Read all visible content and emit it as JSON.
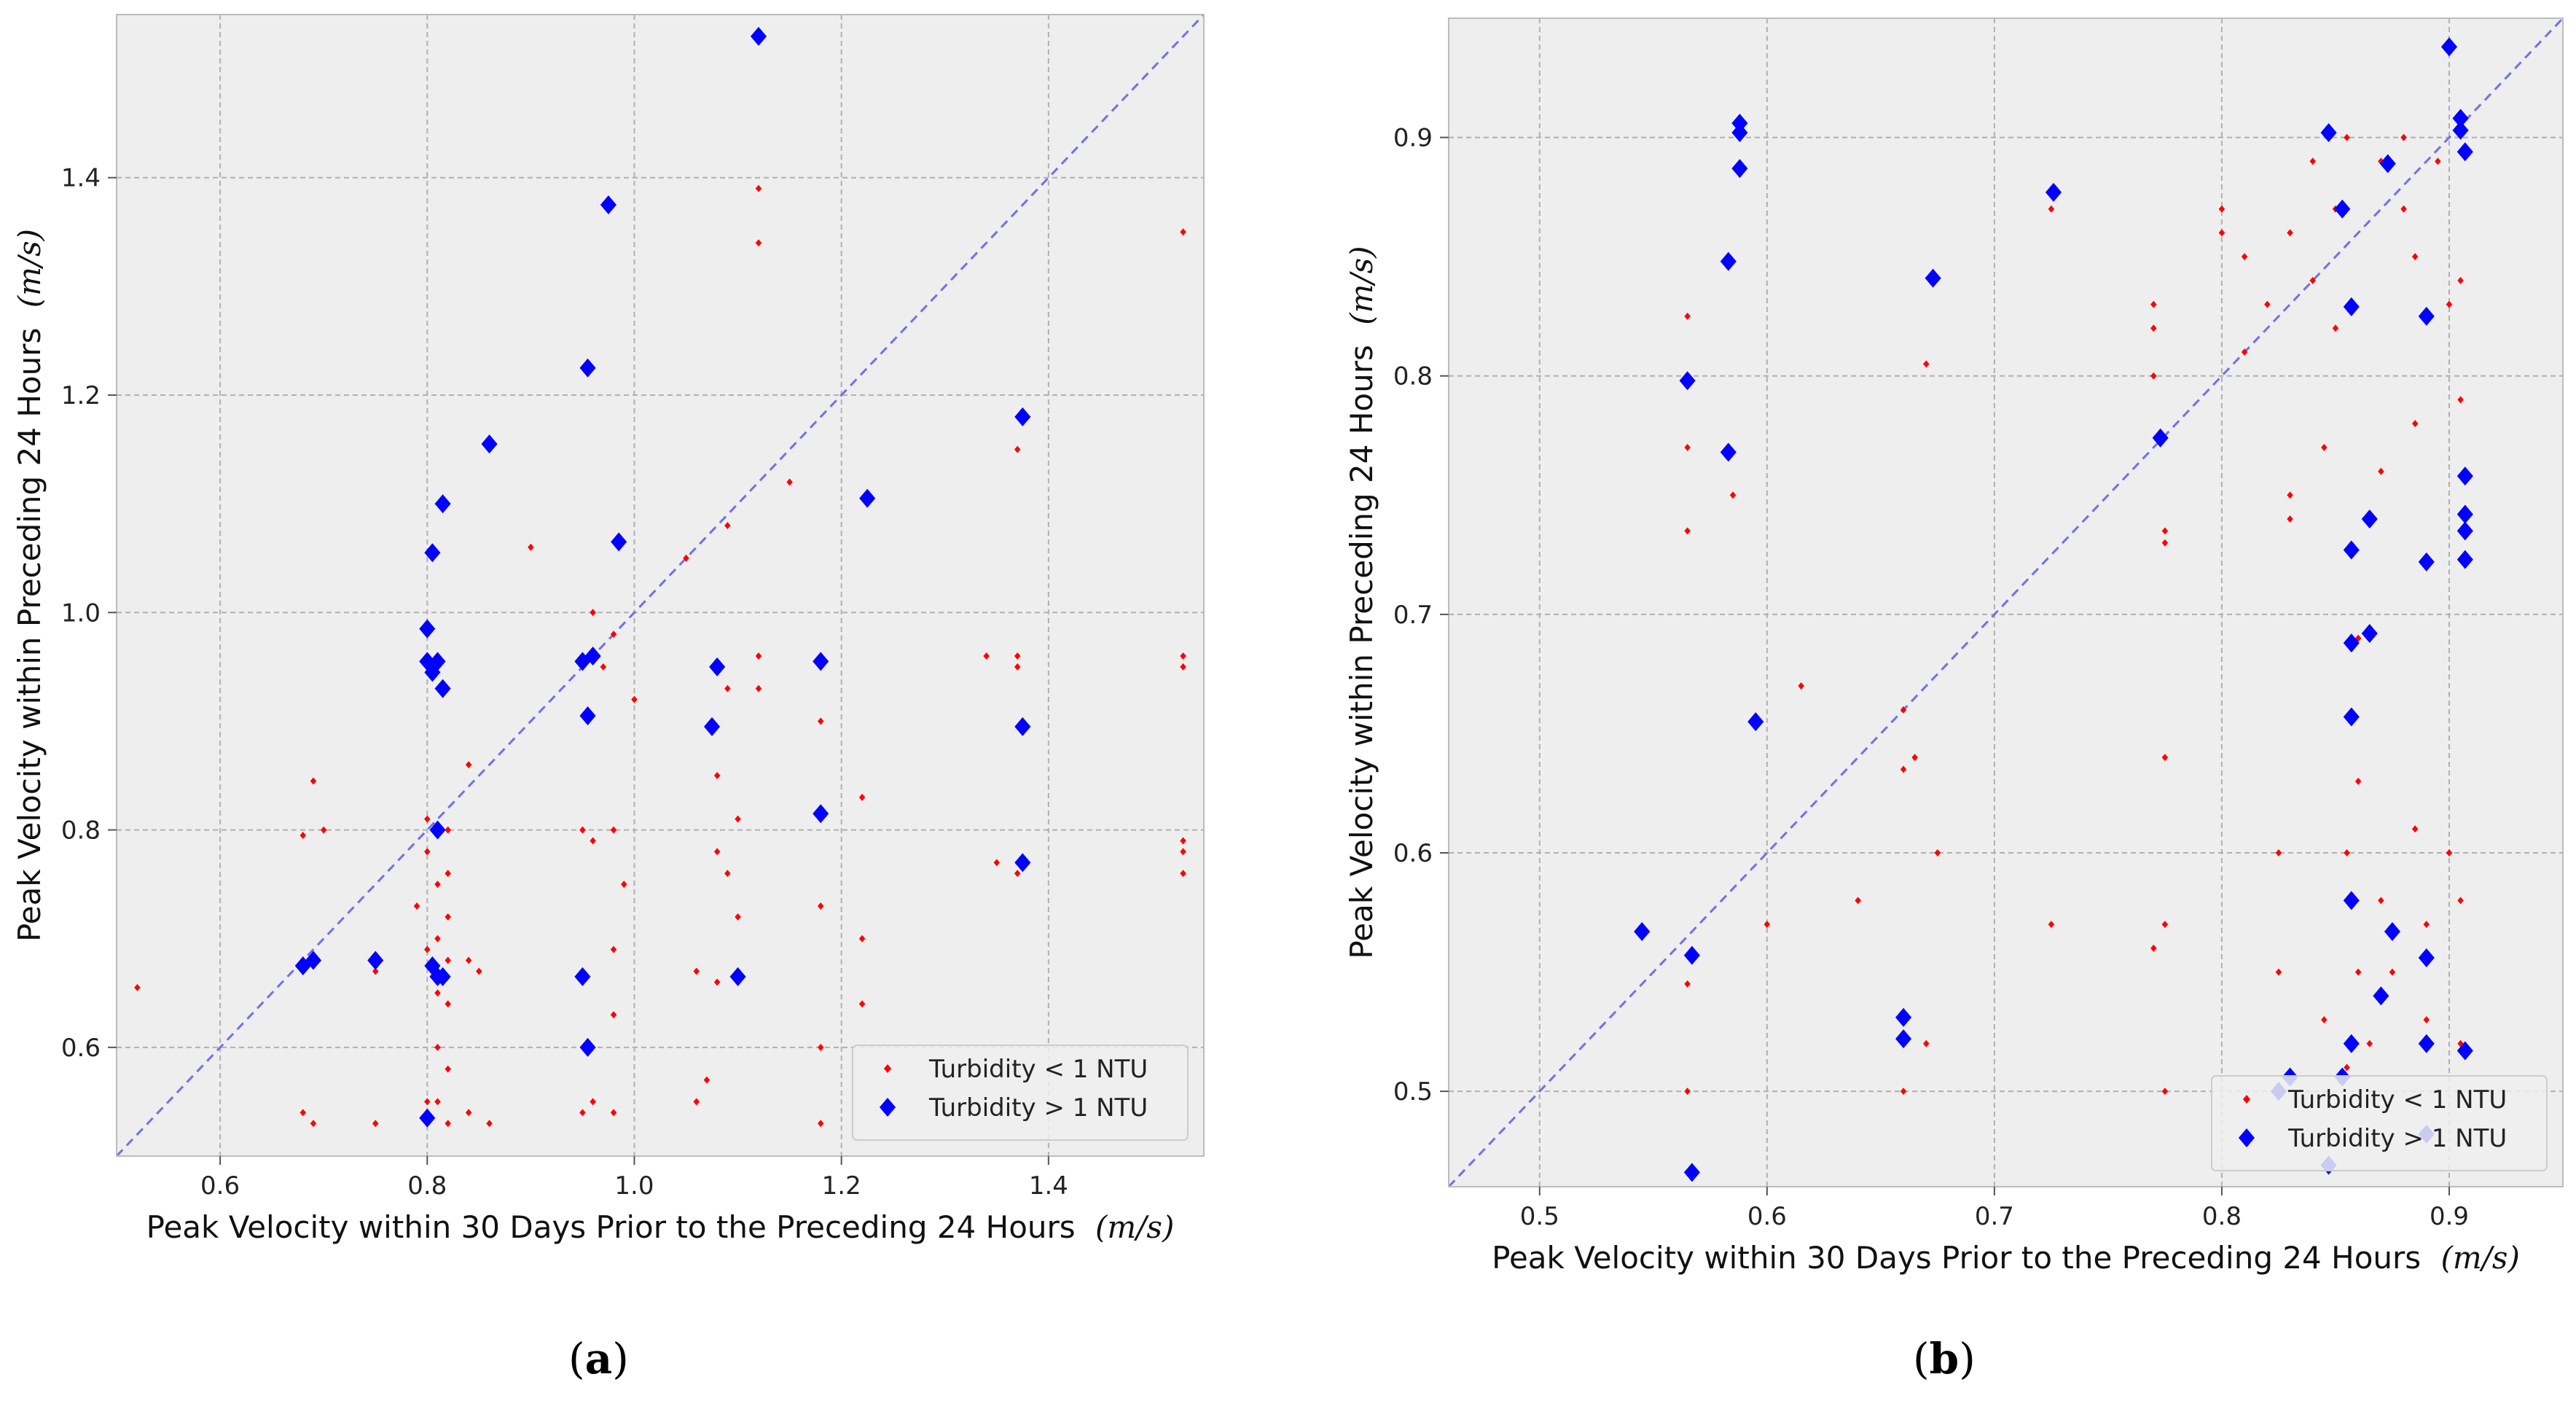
{
  "panels": [
    {
      "label_open": "(",
      "label_letter": "a",
      "label_close": ")",
      "xlabel": "Peak Velocity within 30 Days Prior to the Preceding 24 Hours",
      "ylabel": "Peak Velocity within Preceding 24 Hours",
      "unit": "(m/s)",
      "xticks": [
        "0.6",
        "0.8",
        "1.0",
        "1.2",
        "1.4"
      ],
      "yticks": [
        "0.6",
        "0.8",
        "1.0",
        "1.2",
        "1.4"
      ],
      "legend": [
        "Turbidity < 1 NTU",
        "Turbidity > 1 NTU"
      ]
    },
    {
      "label_open": "(",
      "label_letter": "b",
      "label_close": ")",
      "xlabel": "Peak Velocity within 30 Days Prior to the Preceding 24 Hours",
      "ylabel": "Peak Velocity within Preceding 24 Hours",
      "unit": "(m/s)",
      "xticks": [
        "0.5",
        "0.6",
        "0.7",
        "0.8",
        "0.9"
      ],
      "yticks": [
        "0.5",
        "0.6",
        "0.7",
        "0.8",
        "0.9"
      ],
      "legend": [
        "Turbidity < 1 NTU",
        "Turbidity > 1 NTU"
      ]
    }
  ],
  "colors": {
    "low": "#ff0000",
    "high": "#0000ff",
    "diag": "#7070ee",
    "bg": "#eeeeee",
    "grid": "#b0b0b0"
  },
  "chart_data": [
    {
      "type": "scatter",
      "title": "(a)",
      "xlabel": "Peak Velocity within 30 Days Prior to the Preceding 24 Hours (m/s)",
      "ylabel": "Peak Velocity within Preceding 24 Hours (m/s)",
      "xlim": [
        0.5,
        1.55
      ],
      "ylim": [
        0.5,
        1.55
      ],
      "xticks": [
        0.6,
        0.8,
        1.0,
        1.2,
        1.4
      ],
      "yticks": [
        0.6,
        0.8,
        1.0,
        1.2,
        1.4
      ],
      "grid": true,
      "legend_position": "bottom-right",
      "reference_line": "y = x",
      "series": [
        {
          "name": "Turbidity < 1 NTU",
          "marker": "small-diamond",
          "color": "#ff0000",
          "points": [
            [
              0.52,
              0.655
            ],
            [
              0.68,
              0.795
            ],
            [
              0.68,
              0.54
            ],
            [
              0.68,
              0.67
            ],
            [
              0.69,
              0.845
            ],
            [
              0.69,
              0.53
            ],
            [
              0.7,
              0.8
            ],
            [
              0.75,
              0.53
            ],
            [
              0.75,
              0.67
            ],
            [
              0.79,
              0.73
            ],
            [
              0.8,
              0.81
            ],
            [
              0.8,
              0.78
            ],
            [
              0.8,
              0.69
            ],
            [
              0.8,
              0.55
            ],
            [
              0.81,
              0.8
            ],
            [
              0.81,
              0.75
            ],
            [
              0.81,
              0.7
            ],
            [
              0.81,
              0.65
            ],
            [
              0.81,
              0.6
            ],
            [
              0.81,
              0.55
            ],
            [
              0.82,
              0.8
            ],
            [
              0.82,
              0.76
            ],
            [
              0.82,
              0.72
            ],
            [
              0.82,
              0.68
            ],
            [
              0.82,
              0.64
            ],
            [
              0.82,
              0.58
            ],
            [
              0.82,
              0.53
            ],
            [
              0.84,
              0.86
            ],
            [
              0.84,
              0.68
            ],
            [
              0.84,
              0.54
            ],
            [
              0.85,
              0.67
            ],
            [
              0.86,
              0.53
            ],
            [
              0.9,
              1.06
            ],
            [
              0.95,
              0.8
            ],
            [
              0.95,
              0.67
            ],
            [
              0.95,
              0.54
            ],
            [
              0.96,
              1.0
            ],
            [
              0.96,
              0.79
            ],
            [
              0.96,
              0.55
            ],
            [
              0.97,
              0.95
            ],
            [
              0.98,
              0.98
            ],
            [
              0.98,
              0.8
            ],
            [
              0.98,
              0.69
            ],
            [
              0.98,
              0.63
            ],
            [
              0.98,
              0.54
            ],
            [
              0.99,
              0.75
            ],
            [
              1.0,
              0.92
            ],
            [
              1.05,
              1.05
            ],
            [
              1.06,
              0.67
            ],
            [
              1.06,
              0.55
            ],
            [
              1.07,
              0.57
            ],
            [
              1.08,
              0.95
            ],
            [
              1.08,
              0.85
            ],
            [
              1.08,
              0.78
            ],
            [
              1.08,
              0.66
            ],
            [
              1.09,
              1.08
            ],
            [
              1.09,
              0.93
            ],
            [
              1.09,
              0.76
            ],
            [
              1.1,
              0.81
            ],
            [
              1.1,
              0.72
            ],
            [
              1.12,
              1.39
            ],
            [
              1.12,
              1.34
            ],
            [
              1.12,
              0.96
            ],
            [
              1.12,
              0.93
            ],
            [
              1.15,
              1.12
            ],
            [
              1.18,
              0.95
            ],
            [
              1.18,
              0.9
            ],
            [
              1.18,
              0.73
            ],
            [
              1.18,
              0.6
            ],
            [
              1.18,
              0.53
            ],
            [
              1.22,
              0.83
            ],
            [
              1.22,
              0.7
            ],
            [
              1.22,
              0.64
            ],
            [
              1.34,
              0.96
            ],
            [
              1.35,
              0.77
            ],
            [
              1.37,
              0.96
            ],
            [
              1.37,
              0.95
            ],
            [
              1.37,
              0.76
            ],
            [
              1.37,
              1.15
            ],
            [
              1.53,
              1.35
            ],
            [
              1.53,
              0.96
            ],
            [
              1.53,
              0.95
            ],
            [
              1.53,
              0.79
            ],
            [
              1.53,
              0.78
            ],
            [
              1.53,
              0.76
            ]
          ]
        },
        {
          "name": "Turbidity > 1 NTU",
          "marker": "diamond",
          "color": "#0000ff",
          "points": [
            [
              0.68,
              0.675
            ],
            [
              0.69,
              0.68
            ],
            [
              0.75,
              0.68
            ],
            [
              0.8,
              0.985
            ],
            [
              0.8,
              0.955
            ],
            [
              0.8,
              0.535
            ],
            [
              0.805,
              1.055
            ],
            [
              0.805,
              0.945
            ],
            [
              0.805,
              0.675
            ],
            [
              0.81,
              0.955
            ],
            [
              0.81,
              0.8
            ],
            [
              0.81,
              0.665
            ],
            [
              0.815,
              1.1
            ],
            [
              0.815,
              0.93
            ],
            [
              0.815,
              0.665
            ],
            [
              0.86,
              1.155
            ],
            [
              0.95,
              0.665
            ],
            [
              0.95,
              0.955
            ],
            [
              0.955,
              1.225
            ],
            [
              0.955,
              0.905
            ],
            [
              0.955,
              0.6
            ],
            [
              0.96,
              0.96
            ],
            [
              0.975,
              1.375
            ],
            [
              0.985,
              1.065
            ],
            [
              1.075,
              0.895
            ],
            [
              1.08,
              0.95
            ],
            [
              1.1,
              0.665
            ],
            [
              1.12,
              1.53
            ],
            [
              1.18,
              0.955
            ],
            [
              1.18,
              0.815
            ],
            [
              1.225,
              1.105
            ],
            [
              1.375,
              1.18
            ],
            [
              1.375,
              0.895
            ],
            [
              1.375,
              0.77
            ]
          ]
        }
      ]
    },
    {
      "type": "scatter",
      "title": "(b)",
      "xlabel": "Peak Velocity within 30 Days Prior to the Preceding 24 Hours (m/s)",
      "ylabel": "Peak Velocity within Preceding 24 Hours (m/s)",
      "xlim": [
        0.46,
        0.95
      ],
      "ylim": [
        0.46,
        0.95
      ],
      "xticks": [
        0.5,
        0.6,
        0.7,
        0.8,
        0.9
      ],
      "yticks": [
        0.5,
        0.6,
        0.7,
        0.8,
        0.9
      ],
      "grid": true,
      "legend_position": "bottom-right",
      "reference_line": "y = x",
      "series": [
        {
          "name": "Turbidity < 1 NTU",
          "marker": "small-diamond",
          "color": "#ff0000",
          "points": [
            [
              0.565,
              0.825
            ],
            [
              0.565,
              0.77
            ],
            [
              0.565,
              0.735
            ],
            [
              0.565,
              0.545
            ],
            [
              0.565,
              0.5
            ],
            [
              0.585,
              0.75
            ],
            [
              0.6,
              0.57
            ],
            [
              0.615,
              0.67
            ],
            [
              0.64,
              0.58
            ],
            [
              0.66,
              0.66
            ],
            [
              0.66,
              0.635
            ],
            [
              0.66,
              0.5
            ],
            [
              0.665,
              0.64
            ],
            [
              0.67,
              0.805
            ],
            [
              0.67,
              0.52
            ],
            [
              0.675,
              0.6
            ],
            [
              0.725,
              0.57
            ],
            [
              0.725,
              0.87
            ],
            [
              0.77,
              0.83
            ],
            [
              0.77,
              0.82
            ],
            [
              0.77,
              0.8
            ],
            [
              0.77,
              0.56
            ],
            [
              0.775,
              0.735
            ],
            [
              0.775,
              0.73
            ],
            [
              0.775,
              0.64
            ],
            [
              0.775,
              0.57
            ],
            [
              0.775,
              0.5
            ],
            [
              0.8,
              0.87
            ],
            [
              0.8,
              0.86
            ],
            [
              0.81,
              0.81
            ],
            [
              0.81,
              0.85
            ],
            [
              0.82,
              0.83
            ],
            [
              0.825,
              0.6
            ],
            [
              0.825,
              0.55
            ],
            [
              0.83,
              0.86
            ],
            [
              0.83,
              0.75
            ],
            [
              0.83,
              0.74
            ],
            [
              0.84,
              0.84
            ],
            [
              0.84,
              0.89
            ],
            [
              0.845,
              0.77
            ],
            [
              0.845,
              0.53
            ],
            [
              0.85,
              0.87
            ],
            [
              0.85,
              0.82
            ],
            [
              0.855,
              0.9
            ],
            [
              0.855,
              0.6
            ],
            [
              0.855,
              0.51
            ],
            [
              0.86,
              0.69
            ],
            [
              0.86,
              0.63
            ],
            [
              0.86,
              0.55
            ],
            [
              0.865,
              0.52
            ],
            [
              0.87,
              0.89
            ],
            [
              0.87,
              0.76
            ],
            [
              0.87,
              0.58
            ],
            [
              0.875,
              0.55
            ],
            [
              0.88,
              0.9
            ],
            [
              0.88,
              0.87
            ],
            [
              0.885,
              0.85
            ],
            [
              0.885,
              0.78
            ],
            [
              0.885,
              0.61
            ],
            [
              0.89,
              0.57
            ],
            [
              0.89,
              0.53
            ],
            [
              0.895,
              0.89
            ],
            [
              0.9,
              0.83
            ],
            [
              0.9,
              0.6
            ],
            [
              0.905,
              0.84
            ],
            [
              0.905,
              0.79
            ],
            [
              0.905,
              0.58
            ],
            [
              0.905,
              0.52
            ]
          ]
        },
        {
          "name": "Turbidity > 1 NTU",
          "marker": "diamond",
          "color": "#0000ff",
          "points": [
            [
              0.545,
              0.567
            ],
            [
              0.565,
              0.798
            ],
            [
              0.567,
              0.557
            ],
            [
              0.567,
              0.466
            ],
            [
              0.583,
              0.848
            ],
            [
              0.583,
              0.768
            ],
            [
              0.588,
              0.906
            ],
            [
              0.588,
              0.902
            ],
            [
              0.588,
              0.887
            ],
            [
              0.595,
              0.655
            ],
            [
              0.66,
              0.531
            ],
            [
              0.66,
              0.522
            ],
            [
              0.673,
              0.841
            ],
            [
              0.726,
              0.877
            ],
            [
              0.773,
              0.774
            ],
            [
              0.825,
              0.5
            ],
            [
              0.83,
              0.506
            ],
            [
              0.847,
              0.902
            ],
            [
              0.847,
              0.469
            ],
            [
              0.853,
              0.87
            ],
            [
              0.853,
              0.506
            ],
            [
              0.857,
              0.829
            ],
            [
              0.857,
              0.727
            ],
            [
              0.857,
              0.688
            ],
            [
              0.857,
              0.657
            ],
            [
              0.857,
              0.58
            ],
            [
              0.857,
              0.52
            ],
            [
              0.865,
              0.74
            ],
            [
              0.865,
              0.692
            ],
            [
              0.87,
              0.54
            ],
            [
              0.873,
              0.889
            ],
            [
              0.875,
              0.567
            ],
            [
              0.89,
              0.825
            ],
            [
              0.89,
              0.722
            ],
            [
              0.89,
              0.556
            ],
            [
              0.89,
              0.52
            ],
            [
              0.89,
              0.482
            ],
            [
              0.9,
              0.938
            ],
            [
              0.905,
              0.908
            ],
            [
              0.905,
              0.903
            ],
            [
              0.907,
              0.894
            ],
            [
              0.907,
              0.758
            ],
            [
              0.907,
              0.742
            ],
            [
              0.907,
              0.735
            ],
            [
              0.907,
              0.723
            ],
            [
              0.907,
              0.517
            ]
          ]
        }
      ]
    }
  ]
}
